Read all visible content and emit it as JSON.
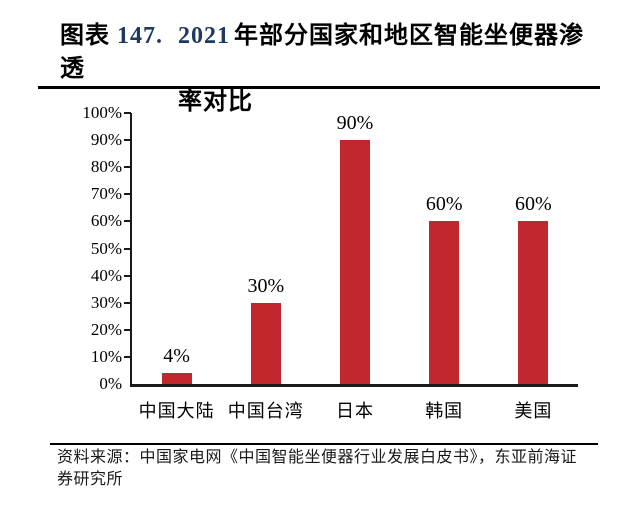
{
  "figure": {
    "label": "图表 ",
    "number": "147.",
    "year": "2021",
    "title_rest": "年部分国家和地区智能坐便器渗透",
    "title_line2": "率对比",
    "source_line1": "资料来源：中国家电网《中国智能坐便器行业发展白皮书》，东亚前海证",
    "source_line2": "券研究所"
  },
  "chart_data": {
    "type": "bar",
    "title": "2021年部分国家和地区智能坐便器渗透率对比",
    "categories": [
      "中国大陆",
      "中国台湾",
      "日本",
      "韩国",
      "美国"
    ],
    "values": [
      4,
      30,
      90,
      60,
      60
    ],
    "data_labels": [
      "4%",
      "30%",
      "90%",
      "60%",
      "60%"
    ],
    "xlabel": "",
    "ylabel": "",
    "ylim": [
      0,
      100
    ],
    "ytick_step": 10,
    "ytick_labels": [
      "0%",
      "10%",
      "20%",
      "30%",
      "40%",
      "50%",
      "60%",
      "70%",
      "80%",
      "90%",
      "100%"
    ],
    "grid": false,
    "legend": "none",
    "bar_color": "#C1272D"
  },
  "colors": {
    "bar": "#C1272D",
    "figure_number_accent": "#1F3864",
    "text": "#000000",
    "axis": "#1A1A1A"
  }
}
